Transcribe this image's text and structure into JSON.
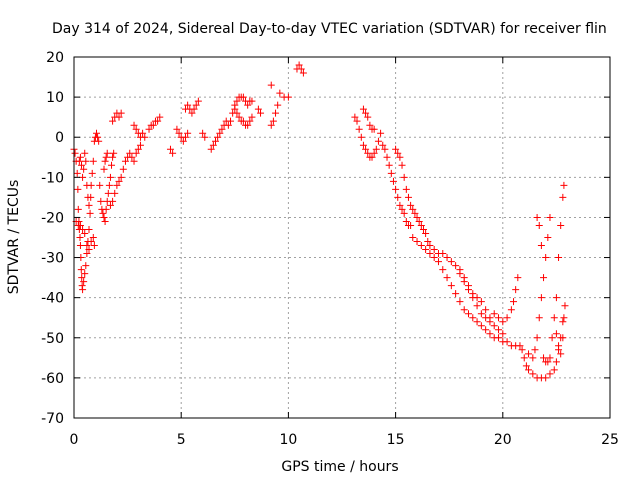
{
  "chart_data": {
    "type": "scatter",
    "title": "Day 314 of 2024, Sidereal Day-to-day VTEC variation (SDTVAR) for receiver flin",
    "xlabel": "GPS time / hours",
    "ylabel": "SDTVAR / TECUs",
    "xlim": [
      0,
      25
    ],
    "ylim": [
      -70,
      20
    ],
    "x_ticks": [
      0,
      5,
      10,
      15,
      20,
      25
    ],
    "y_ticks": [
      -70,
      -60,
      -50,
      -40,
      -30,
      -20,
      -10,
      0,
      10,
      20
    ],
    "grid": true,
    "marker": "+",
    "color": "#ff0000",
    "series": [
      {
        "name": "SDTVAR",
        "points": [
          [
            0.0,
            -3
          ],
          [
            0.05,
            -4
          ],
          [
            0.1,
            -6
          ],
          [
            0.15,
            -9
          ],
          [
            0.18,
            -13
          ],
          [
            0.2,
            -18
          ],
          [
            0.23,
            -21
          ],
          [
            0.25,
            -23
          ],
          [
            0.28,
            -25
          ],
          [
            0.3,
            -27
          ],
          [
            0.32,
            -30
          ],
          [
            0.34,
            -33
          ],
          [
            0.36,
            -35
          ],
          [
            0.38,
            -37
          ],
          [
            0.4,
            -38
          ],
          [
            0.45,
            -36
          ],
          [
            0.5,
            -34
          ],
          [
            0.55,
            -32
          ],
          [
            0.6,
            -29
          ],
          [
            0.65,
            -26
          ],
          [
            0.7,
            -23
          ],
          [
            0.75,
            -19
          ],
          [
            0.78,
            -15
          ],
          [
            0.8,
            -12
          ],
          [
            0.85,
            -9
          ],
          [
            0.9,
            -6
          ],
          [
            0.1,
            -21
          ],
          [
            0.2,
            -22
          ],
          [
            0.3,
            -22
          ],
          [
            0.4,
            -23
          ],
          [
            0.5,
            -24
          ],
          [
            0.6,
            -27
          ],
          [
            0.7,
            -28
          ],
          [
            0.8,
            -26
          ],
          [
            0.9,
            -25
          ],
          [
            0.95,
            -27
          ],
          [
            0.25,
            -6
          ],
          [
            0.3,
            -5
          ],
          [
            0.35,
            -7
          ],
          [
            0.4,
            -10
          ],
          [
            0.45,
            -8
          ],
          [
            0.5,
            -4
          ],
          [
            0.55,
            -6
          ],
          [
            0.6,
            -12
          ],
          [
            0.65,
            -15
          ],
          [
            0.7,
            -17
          ],
          [
            0.95,
            -1
          ],
          [
            1.0,
            0
          ],
          [
            1.05,
            1
          ],
          [
            1.1,
            0
          ],
          [
            1.15,
            -1
          ],
          [
            1.2,
            -12
          ],
          [
            1.25,
            -16
          ],
          [
            1.3,
            -18
          ],
          [
            1.35,
            -19
          ],
          [
            1.4,
            -20
          ],
          [
            1.45,
            -21
          ],
          [
            1.5,
            -18
          ],
          [
            1.55,
            -16
          ],
          [
            1.6,
            -14
          ],
          [
            1.65,
            -12
          ],
          [
            1.7,
            -10
          ],
          [
            1.75,
            -7
          ],
          [
            1.8,
            -5
          ],
          [
            1.85,
            -4
          ],
          [
            1.4,
            -8
          ],
          [
            1.45,
            -6
          ],
          [
            1.5,
            -5
          ],
          [
            1.55,
            -4
          ],
          [
            1.7,
            -17
          ],
          [
            1.8,
            -16
          ],
          [
            1.9,
            -14
          ],
          [
            2.0,
            -12
          ],
          [
            2.1,
            -11
          ],
          [
            2.2,
            -10
          ],
          [
            2.3,
            -8
          ],
          [
            2.4,
            -6
          ],
          [
            2.5,
            -5
          ],
          [
            2.6,
            -4
          ],
          [
            2.7,
            -5
          ],
          [
            2.8,
            -6
          ],
          [
            2.9,
            -4
          ],
          [
            3.0,
            -3
          ],
          [
            3.1,
            -2
          ],
          [
            1.8,
            4
          ],
          [
            1.9,
            5
          ],
          [
            2.0,
            6
          ],
          [
            2.1,
            5
          ],
          [
            2.2,
            6
          ],
          [
            2.8,
            3
          ],
          [
            2.9,
            2
          ],
          [
            3.0,
            1
          ],
          [
            3.1,
            0
          ],
          [
            3.2,
            1
          ],
          [
            3.3,
            0
          ],
          [
            3.5,
            2
          ],
          [
            3.6,
            3
          ],
          [
            3.7,
            3
          ],
          [
            3.8,
            4
          ],
          [
            3.9,
            4
          ],
          [
            4.0,
            5
          ],
          [
            4.5,
            -3
          ],
          [
            4.6,
            -4
          ],
          [
            4.8,
            2
          ],
          [
            4.9,
            1
          ],
          [
            5.0,
            0
          ],
          [
            5.1,
            -1
          ],
          [
            5.2,
            0
          ],
          [
            5.3,
            1
          ],
          [
            5.2,
            7
          ],
          [
            5.3,
            8
          ],
          [
            5.4,
            7
          ],
          [
            5.5,
            6
          ],
          [
            5.6,
            7
          ],
          [
            5.7,
            8
          ],
          [
            5.8,
            9
          ],
          [
            6.0,
            1
          ],
          [
            6.1,
            0
          ],
          [
            6.4,
            -3
          ],
          [
            6.5,
            -2
          ],
          [
            6.6,
            -1
          ],
          [
            6.7,
            0
          ],
          [
            6.8,
            1
          ],
          [
            6.9,
            2
          ],
          [
            7.0,
            3
          ],
          [
            7.1,
            4
          ],
          [
            7.2,
            3
          ],
          [
            7.3,
            4
          ],
          [
            7.4,
            6
          ],
          [
            7.5,
            8
          ],
          [
            7.6,
            9
          ],
          [
            7.7,
            10
          ],
          [
            7.8,
            10
          ],
          [
            7.9,
            10
          ],
          [
            8.0,
            9
          ],
          [
            8.1,
            8
          ],
          [
            8.2,
            9
          ],
          [
            8.3,
            9
          ],
          [
            7.5,
            7
          ],
          [
            7.6,
            6
          ],
          [
            7.7,
            5
          ],
          [
            7.8,
            4
          ],
          [
            7.9,
            4
          ],
          [
            8.0,
            3
          ],
          [
            8.1,
            3
          ],
          [
            8.2,
            4
          ],
          [
            8.3,
            5
          ],
          [
            8.6,
            7
          ],
          [
            8.7,
            6
          ],
          [
            9.2,
            3
          ],
          [
            9.3,
            4
          ],
          [
            9.4,
            6
          ],
          [
            9.5,
            8
          ],
          [
            9.2,
            13
          ],
          [
            9.6,
            11
          ],
          [
            9.8,
            10
          ],
          [
            10.0,
            10
          ],
          [
            10.4,
            17
          ],
          [
            10.5,
            18
          ],
          [
            10.6,
            17
          ],
          [
            10.7,
            16
          ],
          [
            13.1,
            5
          ],
          [
            13.2,
            4
          ],
          [
            13.3,
            2
          ],
          [
            13.4,
            0
          ],
          [
            13.5,
            -2
          ],
          [
            13.6,
            -3
          ],
          [
            13.7,
            -4
          ],
          [
            13.8,
            -5
          ],
          [
            13.9,
            -5
          ],
          [
            14.0,
            -4
          ],
          [
            14.1,
            -3
          ],
          [
            14.2,
            -1
          ],
          [
            14.3,
            1
          ],
          [
            13.5,
            7
          ],
          [
            13.6,
            6
          ],
          [
            13.7,
            5
          ],
          [
            13.8,
            3
          ],
          [
            13.9,
            2
          ],
          [
            14.0,
            2
          ],
          [
            14.4,
            -2
          ],
          [
            14.5,
            -3
          ],
          [
            14.6,
            -5
          ],
          [
            14.7,
            -7
          ],
          [
            14.8,
            -9
          ],
          [
            14.9,
            -11
          ],
          [
            15.0,
            -13
          ],
          [
            15.1,
            -15
          ],
          [
            15.2,
            -17
          ],
          [
            15.3,
            -18
          ],
          [
            15.4,
            -19
          ],
          [
            15.5,
            -21
          ],
          [
            15.6,
            -22
          ],
          [
            15.7,
            -22
          ],
          [
            15.0,
            -3
          ],
          [
            15.1,
            -4
          ],
          [
            15.2,
            -5
          ],
          [
            15.3,
            -7
          ],
          [
            15.4,
            -10
          ],
          [
            15.5,
            -13
          ],
          [
            15.6,
            -15
          ],
          [
            15.7,
            -17
          ],
          [
            15.8,
            -18
          ],
          [
            15.9,
            -19
          ],
          [
            16.0,
            -20
          ],
          [
            16.1,
            -21
          ],
          [
            16.2,
            -22
          ],
          [
            16.3,
            -23
          ],
          [
            16.4,
            -24
          ],
          [
            16.5,
            -26
          ],
          [
            15.8,
            -25
          ],
          [
            16.0,
            -26
          ],
          [
            16.2,
            -27
          ],
          [
            16.4,
            -28
          ],
          [
            16.6,
            -29
          ],
          [
            16.8,
            -30
          ],
          [
            17.0,
            -31
          ],
          [
            17.2,
            -33
          ],
          [
            17.4,
            -35
          ],
          [
            17.6,
            -37
          ],
          [
            17.8,
            -39
          ],
          [
            18.0,
            -41
          ],
          [
            18.2,
            -43
          ],
          [
            18.4,
            -44
          ],
          [
            18.6,
            -45
          ],
          [
            18.8,
            -46
          ],
          [
            19.0,
            -47
          ],
          [
            19.2,
            -48
          ],
          [
            19.4,
            -49
          ],
          [
            19.6,
            -50
          ],
          [
            19.8,
            -50
          ],
          [
            20.0,
            -51
          ],
          [
            20.2,
            -51
          ],
          [
            20.4,
            -52
          ],
          [
            20.6,
            -52
          ],
          [
            20.8,
            -52
          ],
          [
            16.6,
            -27
          ],
          [
            16.8,
            -28
          ],
          [
            17.0,
            -29
          ],
          [
            17.2,
            -29
          ],
          [
            17.4,
            -30
          ],
          [
            17.6,
            -31
          ],
          [
            17.8,
            -32
          ],
          [
            18.0,
            -34
          ],
          [
            18.2,
            -36
          ],
          [
            18.4,
            -38
          ],
          [
            18.6,
            -39
          ],
          [
            18.8,
            -40
          ],
          [
            19.0,
            -41
          ],
          [
            19.2,
            -43
          ],
          [
            19.4,
            -45
          ],
          [
            19.6,
            -47
          ],
          [
            19.8,
            -48
          ],
          [
            20.0,
            -49
          ],
          [
            18.0,
            -33
          ],
          [
            18.2,
            -35
          ],
          [
            18.4,
            -37
          ],
          [
            18.6,
            -40
          ],
          [
            18.8,
            -42
          ],
          [
            19.0,
            -44
          ],
          [
            19.2,
            -45
          ],
          [
            19.4,
            -46
          ],
          [
            19.6,
            -44
          ],
          [
            19.8,
            -45
          ],
          [
            20.0,
            -46
          ],
          [
            20.2,
            -45
          ],
          [
            20.4,
            -43
          ],
          [
            20.5,
            -41
          ],
          [
            20.6,
            -38
          ],
          [
            20.7,
            -35
          ],
          [
            20.9,
            -53
          ],
          [
            21.0,
            -55
          ],
          [
            21.1,
            -57
          ],
          [
            21.2,
            -58
          ],
          [
            21.4,
            -59
          ],
          [
            21.6,
            -60
          ],
          [
            21.8,
            -60
          ],
          [
            22.0,
            -60
          ],
          [
            22.2,
            -59
          ],
          [
            22.4,
            -58
          ],
          [
            22.5,
            -56
          ],
          [
            22.6,
            -53
          ],
          [
            22.7,
            -50
          ],
          [
            22.8,
            -46
          ],
          [
            22.9,
            -42
          ],
          [
            21.2,
            -54
          ],
          [
            21.4,
            -55
          ],
          [
            21.5,
            -53
          ],
          [
            21.6,
            -50
          ],
          [
            21.7,
            -45
          ],
          [
            21.8,
            -40
          ],
          [
            21.9,
            -35
          ],
          [
            22.0,
            -30
          ],
          [
            22.1,
            -25
          ],
          [
            22.2,
            -20
          ],
          [
            21.9,
            -55
          ],
          [
            22.0,
            -56
          ],
          [
            22.1,
            -56
          ],
          [
            22.2,
            -55
          ],
          [
            22.3,
            -50
          ],
          [
            22.4,
            -45
          ],
          [
            22.5,
            -40
          ],
          [
            22.6,
            -30
          ],
          [
            22.7,
            -22
          ],
          [
            22.8,
            -15
          ],
          [
            22.85,
            -12
          ],
          [
            21.6,
            -20
          ],
          [
            21.7,
            -22
          ],
          [
            21.8,
            -27
          ],
          [
            22.5,
            -49
          ],
          [
            22.6,
            -52
          ],
          [
            22.7,
            -54
          ],
          [
            22.8,
            -50
          ],
          [
            22.85,
            -45
          ]
        ]
      }
    ]
  }
}
